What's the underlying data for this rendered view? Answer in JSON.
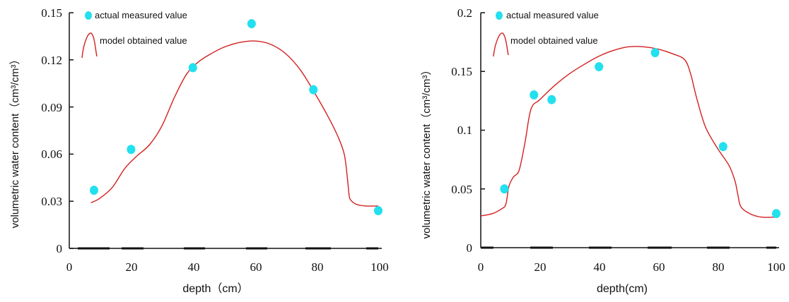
{
  "colors": {
    "measured": "#22e0ee",
    "model": "#d42020",
    "axis": "#111111"
  },
  "chart_data": [
    {
      "type": "line",
      "xlabel": "depth（cm）",
      "ylabel": "volumetric water content（cm³/cm³）",
      "xlim": [
        0,
        100
      ],
      "ylim": [
        0,
        0.15
      ],
      "xticks": [
        "0",
        "20",
        "40",
        "60",
        "80",
        "100"
      ],
      "yticks": [
        "0",
        "0.03",
        "0.06",
        "0.09",
        "0.12",
        "0.15"
      ],
      "series": [
        {
          "name": "actual measured value",
          "kind": "scatter",
          "x": [
            8,
            20,
            40,
            59,
            79,
            100
          ],
          "y": [
            0.037,
            0.063,
            0.115,
            0.143,
            0.101,
            0.024
          ]
        },
        {
          "name": "model obtained value",
          "kind": "line",
          "x": [
            7,
            10,
            14,
            18,
            22,
            26,
            30,
            34,
            38,
            42,
            46,
            50,
            55,
            60,
            65,
            70,
            75,
            80,
            84,
            87,
            89,
            90,
            90.5,
            91,
            93,
            96,
            100
          ],
          "y": [
            0.029,
            0.032,
            0.039,
            0.051,
            0.059,
            0.066,
            0.078,
            0.096,
            0.111,
            0.119,
            0.124,
            0.128,
            0.131,
            0.132,
            0.13,
            0.124,
            0.113,
            0.097,
            0.083,
            0.071,
            0.06,
            0.045,
            0.035,
            0.031,
            0.028,
            0.027,
            0.027
          ]
        }
      ]
    },
    {
      "type": "line",
      "xlabel": "depth(cm)",
      "ylabel": "volumetric water content（cm³/cm³）",
      "xlim": [
        0,
        100
      ],
      "ylim": [
        0,
        0.2
      ],
      "xticks": [
        "0",
        "20",
        "40",
        "60",
        "80",
        "100"
      ],
      "yticks": [
        "0",
        "0.05",
        "0.1",
        "0.15",
        "0.2"
      ],
      "series": [
        {
          "name": "actual measured value",
          "kind": "scatter",
          "x": [
            8,
            18,
            24,
            40,
            59,
            82,
            100
          ],
          "y": [
            0.05,
            0.13,
            0.126,
            0.154,
            0.166,
            0.086,
            0.029
          ]
        },
        {
          "name": "model obtained value",
          "kind": "line",
          "x": [
            0,
            4,
            7,
            8.5,
            9.5,
            11,
            13,
            15,
            17,
            20,
            25,
            30,
            35,
            40,
            45,
            50,
            55,
            60,
            65,
            69,
            71,
            73,
            76,
            80,
            84,
            86,
            87,
            88,
            91,
            95,
            100
          ],
          "y": [
            0.027,
            0.029,
            0.033,
            0.037,
            0.052,
            0.06,
            0.066,
            0.09,
            0.118,
            0.126,
            0.138,
            0.148,
            0.156,
            0.163,
            0.168,
            0.171,
            0.171,
            0.169,
            0.165,
            0.16,
            0.148,
            0.128,
            0.103,
            0.085,
            0.07,
            0.057,
            0.045,
            0.035,
            0.029,
            0.026,
            0.026
          ]
        }
      ]
    }
  ]
}
